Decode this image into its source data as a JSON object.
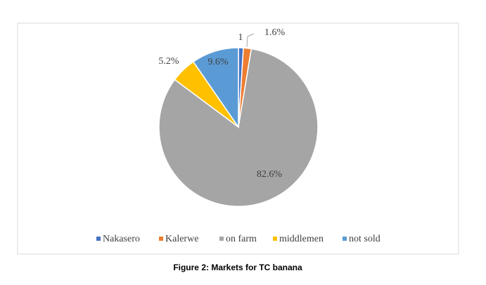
{
  "chart_data": {
    "type": "pie",
    "categories": [
      "Nakasero",
      "Kalerwe",
      "on farm",
      "middlemen",
      "not sold"
    ],
    "values": [
      1,
      1.6,
      82.6,
      5.2,
      9.6
    ],
    "value_labels": [
      "1",
      "1.6%",
      "82.6%",
      "5.2%",
      "9.6%"
    ],
    "colors": [
      "#4472c4",
      "#ed7d31",
      "#a5a5a5",
      "#ffc000",
      "#5b9bd5"
    ],
    "legend": "bottom",
    "caption": "Figure 2: Markets for TC banana"
  }
}
